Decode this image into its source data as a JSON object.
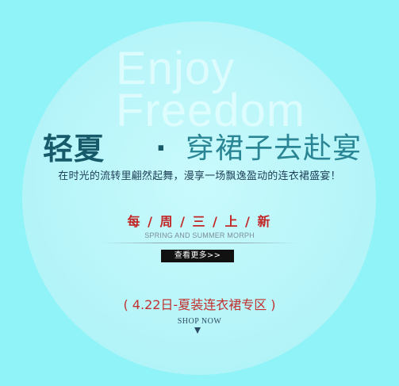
{
  "banner": {
    "watermark_line1": "Enjoy",
    "watermark_line2": "Freedom",
    "headline_bold": "轻夏",
    "headline_dot": "·",
    "headline_light": "穿裙子去赴宴",
    "subheadline": "在时光的流转里翩然起舞，漫享一场飘逸盈动的连衣裙盛宴！",
    "weekly_label": "每 / 周 / 三 / 上 / 新",
    "season_label": "SPRING AND SUMMER MORPH",
    "more_button_label": "查看更多>>",
    "promo_text": "( 4.22日-夏装连衣裙专区 )",
    "shop_now_label": "SHOP NOW"
  },
  "colors": {
    "background": "#8ff3f7",
    "circle": "#b7f5f9",
    "headline_dark": "#175a6a",
    "headline_light": "#2a8594",
    "accent_red": "#c22626",
    "button_bg": "#111111"
  },
  "icons": {
    "shop_arrow": "down-triangle-icon"
  }
}
